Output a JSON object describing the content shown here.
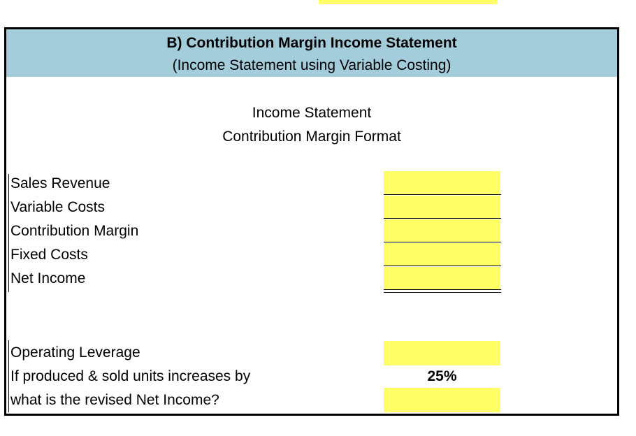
{
  "header": {
    "title": "B) Contribution Margin Income Statement",
    "subtitle": "(Income Statement using Variable Costing)"
  },
  "statement": {
    "title_line1": "Income Statement",
    "title_line2": "Contribution Margin Format",
    "rows": [
      {
        "label": "Sales Revenue",
        "value": ""
      },
      {
        "label": "Variable Costs",
        "value": ""
      },
      {
        "label": "Contribution Margin",
        "value": ""
      },
      {
        "label": "Fixed Costs",
        "value": ""
      },
      {
        "label": "Net Income",
        "value": ""
      }
    ]
  },
  "leverage": {
    "operating_leverage_label": "Operating Leverage",
    "operating_leverage_value": "",
    "increase_label": "If produced & sold units increases by",
    "increase_value": "25%",
    "revised_label": "what is the revised Net Income?",
    "revised_value": ""
  },
  "colors": {
    "header_band": "#a4cddc",
    "input_cell": "#ffff66"
  }
}
